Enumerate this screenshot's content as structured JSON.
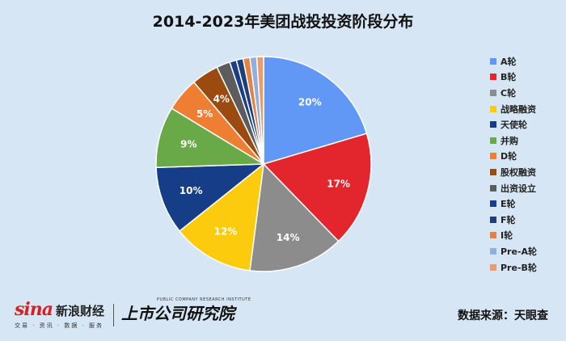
{
  "chart_data": {
    "type": "pie",
    "title": "2014-2023年美团战投投资阶段分布",
    "categories": [
      "A轮",
      "B轮",
      "C轮",
      "战略融资",
      "天使轮",
      "并购",
      "D轮",
      "股权融资",
      "出资设立",
      "E轮",
      "F轮",
      "I轮",
      "Pre-A轮",
      "Pre-B轮"
    ],
    "values": [
      20,
      17,
      14,
      12,
      10,
      9,
      5,
      4,
      2,
      1,
      1,
      1,
      1,
      1
    ],
    "data_labels": [
      "20%",
      "17%",
      "14%",
      "12%",
      "10%",
      "9%",
      "5%",
      "4%",
      "",
      "",
      "",
      "",
      "",
      ""
    ],
    "legend_position": "right",
    "colors": [
      "#6197f5",
      "#e3262d",
      "#8c8c8c",
      "#fdcb0d",
      "#163d87",
      "#6aa948",
      "#ee7e32",
      "#9b4a10",
      "#5c5c5c",
      "#1a3e88",
      "#1d3f7c",
      "#e48243",
      "#8fb0de",
      "#ea9c6b"
    ]
  },
  "footer": {
    "sina_logo": "sina",
    "sina_name": "新浪财经",
    "sina_sub": "交易 · 资讯 · 数据 · 服务",
    "brand2_name": "上市公司研究院",
    "brand2_en": "PUBLIC COMPANY RESEARCH INSTITUTE",
    "source": "数据来源：天眼查"
  }
}
